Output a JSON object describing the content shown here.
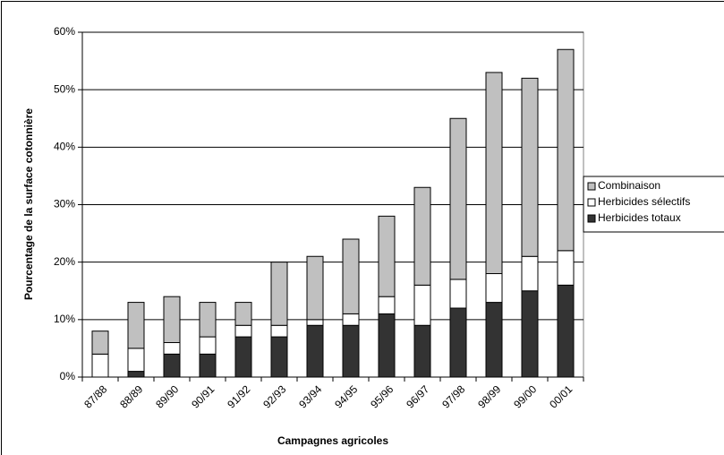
{
  "chart_data": {
    "type": "stacked_bar",
    "y_label": "Pourcentage de la surface cotonnière",
    "x_label": "Campagnes agricoles",
    "categories": [
      "87/88",
      "88/89",
      "89/90",
      "90/91",
      "91/92",
      "92/93",
      "93/94",
      "94/95",
      "95/96",
      "96/97",
      "97/98",
      "98/99",
      "99/00",
      "00/01"
    ],
    "series": [
      {
        "name": "Herbicides totaux",
        "color": "#333333",
        "values": [
          0,
          1,
          4,
          4,
          7,
          7,
          9,
          9,
          11,
          9,
          12,
          13,
          15,
          16
        ]
      },
      {
        "name": "Herbicides sélectifs",
        "color": "#ffffff",
        "values": [
          4,
          4,
          2,
          3,
          2,
          2,
          1,
          2,
          3,
          7,
          5,
          5,
          6,
          6
        ]
      },
      {
        "name": "Combinaison",
        "color": "#c0c0c0",
        "values": [
          4,
          8,
          8,
          6,
          4,
          11,
          11,
          13,
          14,
          17,
          28,
          35,
          31,
          35
        ]
      }
    ],
    "ylim": [
      0,
      60
    ],
    "yticks": [
      {
        "value": 0,
        "label": "0%"
      },
      {
        "value": 10,
        "label": "10%"
      },
      {
        "value": 20,
        "label": "20%"
      },
      {
        "value": 30,
        "label": "30%"
      },
      {
        "value": 40,
        "label": "40%"
      },
      {
        "value": 50,
        "label": "50%"
      },
      {
        "value": 60,
        "label": "60%"
      }
    ],
    "grid": true,
    "legend": "right"
  }
}
